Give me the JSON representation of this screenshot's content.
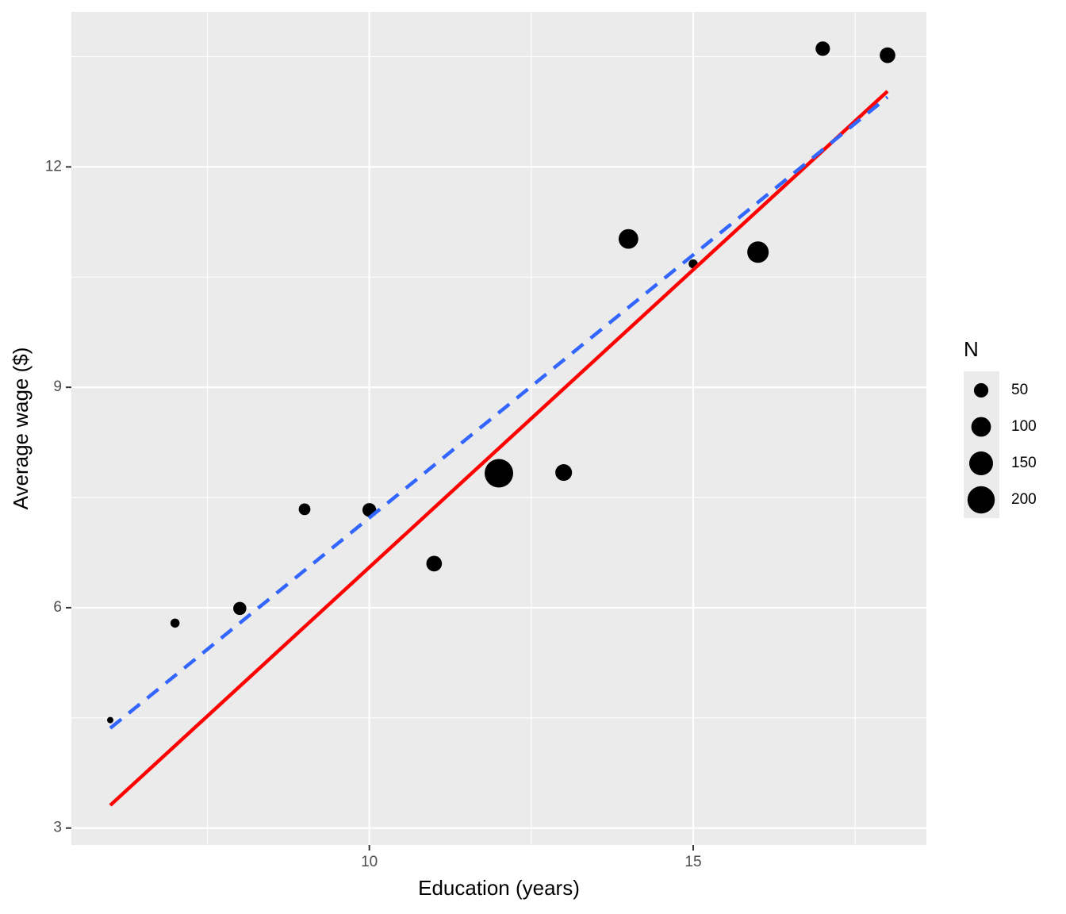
{
  "chart_data": {
    "type": "scatter",
    "xlabel": "Education (years)",
    "ylabel": "Average wage ($)",
    "x": [
      6,
      7,
      8,
      9,
      10,
      11,
      12,
      13,
      14,
      15,
      16,
      17,
      18
    ],
    "y": [
      4.47,
      5.79,
      5.99,
      7.34,
      7.33,
      6.6,
      7.83,
      7.84,
      11.02,
      10.68,
      10.84,
      13.61,
      13.52
    ],
    "sizes": [
      3,
      15,
      40,
      30,
      45,
      60,
      220,
      70,
      100,
      15,
      120,
      50,
      60
    ],
    "color": "#000000",
    "lines": [
      {
        "color": "#ff0000",
        "dash": false,
        "x": [
          6,
          18
        ],
        "y": [
          3.31,
          13.03
        ]
      },
      {
        "color": "#3366ff",
        "dash": true,
        "x": [
          6,
          18
        ],
        "y": [
          4.36,
          12.95
        ]
      }
    ],
    "size_legend": {
      "title": "N",
      "breaks": [
        50,
        100,
        150,
        200
      ]
    },
    "xlim": [
      5.4,
      18.6
    ],
    "xticks": [
      10,
      15
    ],
    "xminor": [
      7.5,
      12.5,
      17.5
    ],
    "ylim": [
      2.77,
      14.11
    ],
    "yticks": [
      3,
      6,
      9,
      12
    ],
    "yminor": [
      4.5,
      7.5,
      10.5,
      13.5
    ],
    "grid": true
  }
}
